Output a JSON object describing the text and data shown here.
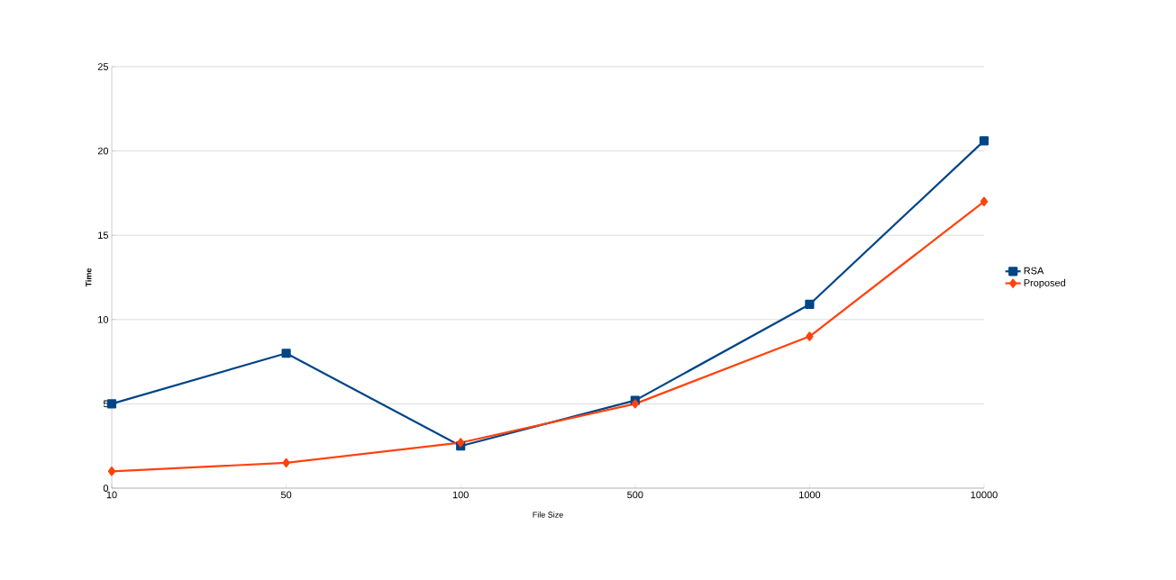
{
  "chart_data": {
    "type": "line",
    "xlabel": "File Size",
    "ylabel": "Time",
    "categories": [
      "10",
      "50",
      "100",
      "500",
      "1000",
      "10000"
    ],
    "series": [
      {
        "name": "RSA",
        "color": "#004586",
        "marker": "square",
        "values": [
          5,
          8,
          2.5,
          5.2,
          10.9,
          20.6
        ]
      },
      {
        "name": "Proposed",
        "color": "#ff420e",
        "marker": "diamond",
        "values": [
          1,
          1.5,
          2.7,
          5,
          9,
          17
        ]
      }
    ],
    "ylim": [
      0,
      25
    ],
    "yticks": [
      0,
      5,
      10,
      15,
      20,
      25
    ],
    "grid": "y",
    "legend": "right"
  }
}
